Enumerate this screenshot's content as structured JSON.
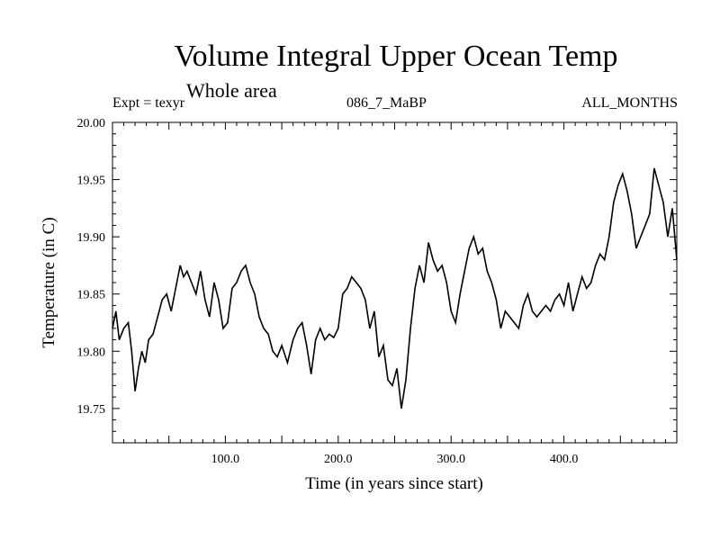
{
  "chart_data": {
    "type": "line",
    "title": "Volume Integral Upper Ocean Temp",
    "subtitle": "Whole area",
    "annotations": {
      "left": "Expt = texyr",
      "center": "086_7_MaBP",
      "right": "ALL_MONTHS"
    },
    "xlabel": "Time (in years since start)",
    "ylabel": "Temperature (in C)",
    "xlim": [
      0,
      500
    ],
    "ylim": [
      19.72,
      20.0
    ],
    "x_ticks": [
      100,
      200,
      300,
      400
    ],
    "x_tick_labels": [
      "100.0",
      "200.0",
      "300.0",
      "400.0"
    ],
    "y_ticks": [
      19.75,
      19.8,
      19.85,
      19.9,
      19.95,
      20.0
    ],
    "y_tick_labels": [
      "19.75",
      "19.80",
      "19.85",
      "19.90",
      "19.95",
      "20.00"
    ],
    "grid": false,
    "line_color": "#000000",
    "series": [
      {
        "x": [
          0,
          3,
          6,
          10,
          14,
          17,
          20,
          23,
          26,
          29,
          32,
          36,
          40,
          44,
          48,
          52,
          56,
          60,
          63,
          66,
          70,
          74,
          78,
          82,
          86,
          90,
          94,
          98,
          102,
          106,
          110,
          114,
          118,
          122,
          126,
          130,
          134,
          138,
          142,
          146,
          150,
          155,
          160,
          164,
          168,
          172,
          176,
          180,
          184,
          188,
          192,
          196,
          200,
          204,
          208,
          212,
          216,
          220,
          224,
          228,
          232,
          236,
          240,
          244,
          248,
          252,
          256,
          260,
          264,
          268,
          272,
          276,
          280,
          284,
          288,
          292,
          296,
          300,
          304,
          308,
          312,
          316,
          320,
          324,
          328,
          332,
          336,
          340,
          344,
          348,
          352,
          356,
          360,
          364,
          368,
          372,
          376,
          380,
          384,
          388,
          392,
          396,
          400,
          404,
          408,
          412,
          416,
          420,
          424,
          428,
          432,
          436,
          440,
          444,
          448,
          452,
          456,
          460,
          464,
          468,
          472,
          476,
          480,
          484,
          488,
          492,
          496,
          500
        ],
        "y": [
          19.82,
          19.835,
          19.81,
          19.82,
          19.825,
          19.8,
          19.765,
          19.785,
          19.8,
          19.79,
          19.81,
          19.815,
          19.83,
          19.845,
          19.85,
          19.835,
          19.855,
          19.875,
          19.865,
          19.87,
          19.86,
          19.85,
          19.87,
          19.845,
          19.83,
          19.86,
          19.845,
          19.82,
          19.825,
          19.855,
          19.86,
          19.87,
          19.875,
          19.86,
          19.85,
          19.83,
          19.82,
          19.815,
          19.8,
          19.795,
          19.805,
          19.79,
          19.81,
          19.82,
          19.825,
          19.805,
          19.78,
          19.81,
          19.82,
          19.81,
          19.815,
          19.812,
          19.82,
          19.85,
          19.855,
          19.865,
          19.86,
          19.855,
          19.845,
          19.82,
          19.835,
          19.795,
          19.805,
          19.775,
          19.77,
          19.785,
          19.75,
          19.775,
          19.82,
          19.855,
          19.875,
          19.86,
          19.895,
          19.88,
          19.87,
          19.875,
          19.86,
          19.835,
          19.825,
          19.85,
          19.87,
          19.89,
          19.9,
          19.885,
          19.89,
          19.87,
          19.86,
          19.845,
          19.82,
          19.835,
          19.83,
          19.825,
          19.82,
          19.84,
          19.85,
          19.835,
          19.83,
          19.835,
          19.84,
          19.835,
          19.845,
          19.85,
          19.84,
          19.86,
          19.835,
          19.85,
          19.865,
          19.855,
          19.86,
          19.875,
          19.885,
          19.88,
          19.9,
          19.93,
          19.945,
          19.955,
          19.94,
          19.92,
          19.89,
          19.9,
          19.91,
          19.92,
          19.96,
          19.945,
          19.93,
          19.9,
          19.925,
          19.88
        ]
      }
    ]
  }
}
